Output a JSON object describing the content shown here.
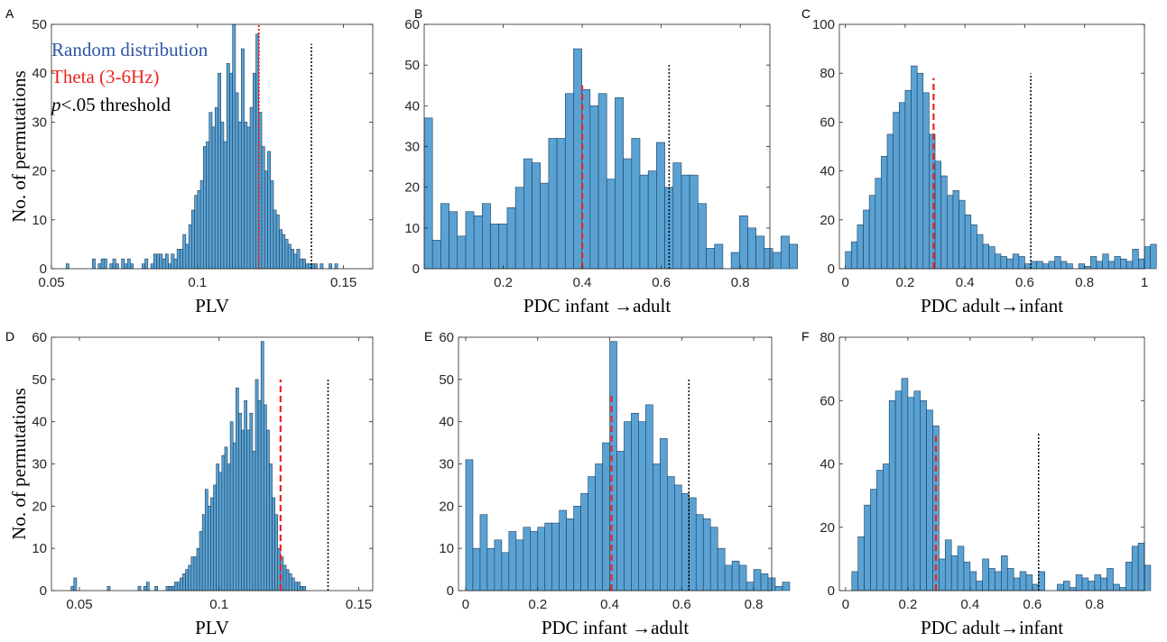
{
  "colors": {
    "bar_fill": "#5aa2d3",
    "bar_edge": "#1d3f5c",
    "theta_line": "#e8261e",
    "threshold_line": "#000000",
    "legend_random": "#2f55a3",
    "legend_theta": "#e8261e",
    "legend_threshold": "#000000"
  },
  "legend": {
    "random": "Random distribution",
    "theta": "Theta (3-6Hz)",
    "threshold_italic": "p",
    "threshold_rest": "<.05 threshold"
  },
  "chart_data": [
    {
      "panel": "A",
      "type": "bar",
      "xlabel": "PLV",
      "ylabel": "No. of permutations",
      "xlim": [
        0.05,
        0.16
      ],
      "ylim": [
        0,
        50
      ],
      "xticks": [
        0.05,
        0.1,
        0.15
      ],
      "xtick_labels": [
        "0.05",
        "0.1",
        "0.15"
      ],
      "yticks": [
        0,
        10,
        20,
        30,
        40,
        50
      ],
      "bin_start": 0.055,
      "bin_width": 0.001,
      "counts": [
        1,
        0,
        0,
        0,
        0,
        0,
        0,
        0,
        0,
        2,
        0,
        1,
        2,
        2,
        0,
        1,
        2,
        1,
        0,
        2,
        1,
        2,
        1,
        0,
        0,
        0,
        1,
        2,
        0,
        1,
        3,
        3,
        3,
        2,
        3,
        1,
        3,
        2,
        4,
        4,
        7,
        5,
        9,
        12,
        15,
        16,
        18,
        25,
        26,
        32,
        29,
        33,
        40,
        30,
        26,
        42,
        40,
        50,
        36,
        30,
        45,
        30,
        29,
        33,
        40,
        48,
        32,
        25,
        20,
        24,
        18,
        12,
        11,
        8,
        7,
        6,
        5,
        4,
        3,
        4,
        2,
        2,
        1,
        1,
        1,
        1,
        0,
        1,
        0,
        0,
        1,
        0,
        1
      ],
      "theta_x": 0.121,
      "theta_height": 50,
      "theta_style": "dotted",
      "threshold_x": 0.139,
      "threshold_height": 46
    },
    {
      "panel": "B",
      "type": "bar",
      "xlabel": "PDC infant →adult",
      "ylabel": "",
      "xlim": [
        0,
        0.875
      ],
      "ylim": [
        0,
        60
      ],
      "xticks": [
        0.2,
        0.4,
        0.6,
        0.8
      ],
      "xtick_labels": [
        "0.2",
        "0.4",
        "0.6",
        "0.8"
      ],
      "yticks": [
        0,
        10,
        20,
        30,
        40,
        50,
        60
      ],
      "bin_start": 0.0,
      "bin_width": 0.021,
      "counts": [
        37,
        7,
        16,
        14,
        8,
        14,
        13,
        16,
        11,
        11,
        15,
        20,
        27,
        26,
        21,
        32,
        32,
        43,
        54,
        44,
        40,
        43,
        22,
        42,
        27,
        32,
        23,
        24,
        31,
        20,
        26,
        23,
        23,
        16,
        5,
        6,
        0,
        4,
        13,
        10,
        8,
        5,
        4,
        8,
        6
      ],
      "theta_x": 0.4,
      "theta_height": 45,
      "theta_style": "dashed",
      "threshold_x": 0.62,
      "threshold_height": 50
    },
    {
      "panel": "C",
      "type": "bar",
      "xlabel": "PDC adult→infant",
      "ylabel": "",
      "xlim": [
        -0.02,
        1.0
      ],
      "ylim": [
        0,
        100
      ],
      "xticks": [
        0,
        0.2,
        0.4,
        0.6,
        0.8,
        1
      ],
      "xtick_labels": [
        "0",
        "0.2",
        "0.4",
        "0.6",
        "0.8",
        "1"
      ],
      "yticks": [
        0,
        20,
        40,
        60,
        80,
        100
      ],
      "bin_start": 0.0,
      "bin_width": 0.02,
      "counts": [
        7,
        11,
        18,
        24,
        30,
        37,
        46,
        55,
        64,
        68,
        73,
        83,
        80,
        72,
        55,
        44,
        38,
        30,
        32,
        28,
        22,
        18,
        14,
        10,
        9,
        6,
        5,
        4,
        6,
        5,
        2,
        3,
        3,
        2,
        3,
        5,
        3,
        2,
        0,
        2,
        1,
        5,
        3,
        6,
        3,
        5,
        4,
        3,
        8,
        4,
        9,
        10
      ],
      "theta_x": 0.295,
      "theta_height": 78,
      "theta_style": "dashed",
      "threshold_x": 0.62,
      "threshold_height": 80
    },
    {
      "panel": "D",
      "type": "bar",
      "xlabel": "PLV",
      "ylabel": "No. of permutations",
      "xlim": [
        0.04,
        0.155
      ],
      "ylim": [
        0,
        60
      ],
      "xticks": [
        0.05,
        0.1,
        0.15
      ],
      "xtick_labels": [
        "0.05",
        "0.1",
        "0.15"
      ],
      "yticks": [
        0,
        10,
        20,
        30,
        40,
        50,
        60
      ],
      "bin_start": 0.047,
      "bin_width": 0.001,
      "counts": [
        1,
        3,
        0,
        0,
        0,
        0,
        0,
        0,
        0,
        0,
        0,
        0,
        0,
        1,
        0,
        0,
        0,
        0,
        0,
        0,
        0,
        0,
        0,
        0,
        1,
        0,
        1,
        2,
        0,
        0,
        1,
        0,
        0,
        0,
        1,
        1,
        1,
        2,
        2,
        3,
        4,
        5,
        6,
        8,
        8,
        10,
        14,
        18,
        24,
        20,
        22,
        25,
        30,
        28,
        32,
        34,
        30,
        40,
        35,
        48,
        42,
        38,
        45,
        38,
        42,
        33,
        50,
        45,
        59,
        44,
        38,
        30,
        22,
        18,
        10,
        8,
        6,
        5,
        4,
        3,
        2,
        2,
        1,
        1
      ],
      "theta_x": 0.122,
      "theta_height": 50,
      "theta_style": "dashed",
      "threshold_x": 0.139,
      "threshold_height": 50
    },
    {
      "panel": "E",
      "type": "bar",
      "xlabel": "PDC infant →adult",
      "ylabel": "",
      "xlim": [
        -0.02,
        0.85
      ],
      "ylim": [
        0,
        60
      ],
      "xticks": [
        0,
        0.2,
        0.4,
        0.6,
        0.8
      ],
      "xtick_labels": [
        "0",
        "0.2",
        "0.4",
        "0.6",
        "0.8"
      ],
      "yticks": [
        0,
        10,
        20,
        30,
        40,
        50,
        60
      ],
      "bin_start": 0.0,
      "bin_width": 0.02,
      "counts": [
        31,
        10,
        18,
        10,
        12,
        9,
        14,
        12,
        15,
        14,
        15,
        16,
        16,
        19,
        17,
        20,
        23,
        27,
        30,
        35,
        59,
        33,
        40,
        42,
        40,
        44,
        30,
        36,
        27,
        25,
        23,
        22,
        18,
        17,
        15,
        10,
        6,
        7,
        6,
        2,
        5,
        4,
        3,
        1,
        2
      ],
      "theta_x": 0.405,
      "theta_height": 47,
      "theta_style": "dashed",
      "threshold_x": 0.62,
      "threshold_height": 50
    },
    {
      "panel": "F",
      "type": "bar",
      "xlabel": "PDC adult→infant",
      "ylabel": "",
      "xlim": [
        -0.02,
        0.96
      ],
      "ylim": [
        0,
        80
      ],
      "xticks": [
        0,
        0.2,
        0.4,
        0.6,
        0.8
      ],
      "xtick_labels": [
        "0",
        "0.2",
        "0.4",
        "0.6",
        "0.8"
      ],
      "yticks": [
        0,
        20,
        40,
        60,
        80
      ],
      "bin_start": 0.02,
      "bin_width": 0.02,
      "counts": [
        6,
        17,
        27,
        32,
        38,
        40,
        60,
        63,
        67,
        61,
        63,
        60,
        57,
        52,
        10,
        16,
        11,
        14,
        9,
        6,
        3,
        10,
        7,
        6,
        11,
        7,
        4,
        6,
        5,
        2,
        6,
        0,
        0,
        2,
        3,
        1,
        5,
        4,
        3,
        5,
        4,
        7,
        2,
        1,
        9,
        14,
        15,
        8
      ],
      "theta_x": 0.29,
      "theta_height": 50,
      "theta_style": "dashed",
      "threshold_x": 0.62,
      "threshold_height": 50
    }
  ]
}
